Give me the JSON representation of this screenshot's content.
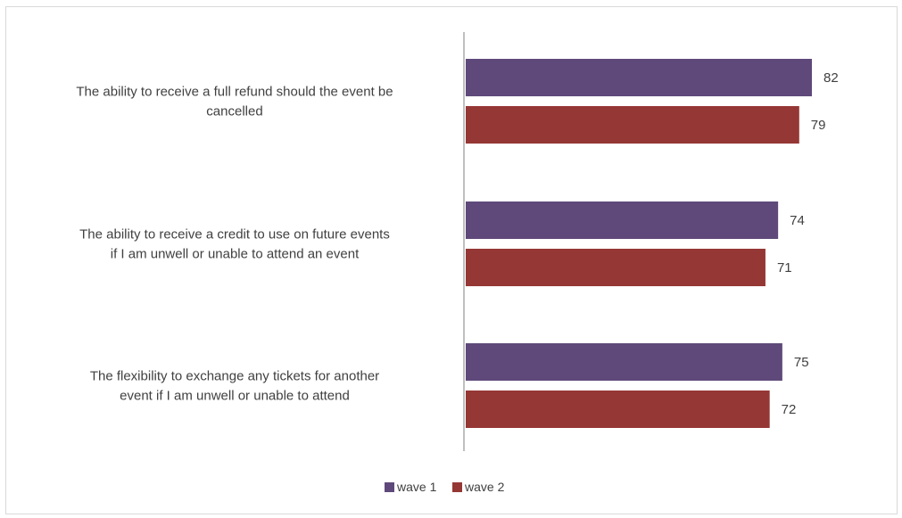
{
  "chart_data": {
    "type": "bar",
    "orientation": "horizontal",
    "categories": [
      "The ability to receive a full refund should the event be cancelled",
      "The ability to receive a credit to use on future events if I am unwell or unable to attend an event",
      "The flexibility to exchange any tickets for another event if I am unwell or unable to attend"
    ],
    "category_lines": [
      [
        "The ability to receive a full refund should the event be",
        "cancelled"
      ],
      [
        "The ability to receive a credit to use on future events",
        "if I am unwell or unable to attend an event"
      ],
      [
        "The flexibility to exchange any tickets for another",
        "event if I am unwell or unable to attend"
      ]
    ],
    "series": [
      {
        "name": "wave 1",
        "color": "#5f497a",
        "values": [
          82,
          74,
          75
        ]
      },
      {
        "name": "wave 2",
        "color": "#953735",
        "values": [
          79,
          71,
          72
        ]
      }
    ],
    "xlim": [
      0,
      85
    ],
    "grid": false,
    "legend_position": "bottom",
    "title": "",
    "xlabel": "",
    "ylabel": ""
  }
}
